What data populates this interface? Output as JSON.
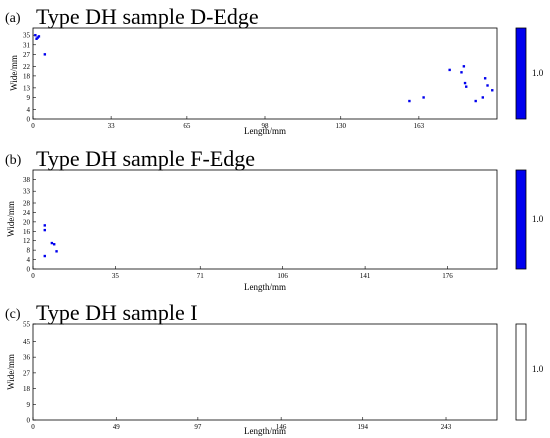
{
  "chart_data": [
    {
      "type": "scatter",
      "panel_label": "(a)",
      "title": "Type DH sample D-Edge",
      "xlabel": "Length/mm",
      "ylabel": "Wide/mm",
      "xticks": [
        0,
        33,
        65,
        98,
        130,
        163
      ],
      "yticks": [
        0,
        4,
        9,
        13,
        18,
        22,
        27,
        31,
        35
      ],
      "xlim": [
        0,
        196
      ],
      "ylim": [
        0,
        38
      ],
      "colorbar": {
        "label": "1.0",
        "color": "#0000ee"
      },
      "point_color": "#0000ee",
      "points": [
        {
          "x": 1,
          "y": 35
        },
        {
          "x": 1.5,
          "y": 33.5
        },
        {
          "x": 2,
          "y": 34
        },
        {
          "x": 2.5,
          "y": 34.5
        },
        {
          "x": 5,
          "y": 27
        },
        {
          "x": 159,
          "y": 7.5
        },
        {
          "x": 165,
          "y": 9
        },
        {
          "x": 176,
          "y": 20.5
        },
        {
          "x": 181,
          "y": 19.5
        },
        {
          "x": 182,
          "y": 22
        },
        {
          "x": 182.5,
          "y": 15
        },
        {
          "x": 183,
          "y": 13.5
        },
        {
          "x": 187,
          "y": 7.5
        },
        {
          "x": 190,
          "y": 9
        },
        {
          "x": 191,
          "y": 17
        },
        {
          "x": 192,
          "y": 14
        },
        {
          "x": 194,
          "y": 12
        }
      ]
    },
    {
      "type": "scatter",
      "panel_label": "(b)",
      "title": "Type DH sample F-Edge",
      "xlabel": "Length/mm",
      "ylabel": "Wide/mm",
      "xticks": [
        0,
        35,
        71,
        106,
        141,
        176
      ],
      "yticks": [
        0,
        4,
        8,
        12,
        16,
        20,
        24,
        28,
        33,
        38
      ],
      "xlim": [
        0,
        197
      ],
      "ylim": [
        0,
        42
      ],
      "colorbar": {
        "label": "1.0",
        "color": "#0000ee"
      },
      "point_color": "#0000ee",
      "points": [
        {
          "x": 5,
          "y": 18.5
        },
        {
          "x": 5,
          "y": 16.5
        },
        {
          "x": 5,
          "y": 5.5
        },
        {
          "x": 8,
          "y": 11
        },
        {
          "x": 9,
          "y": 10.5
        },
        {
          "x": 10,
          "y": 7.5
        }
      ]
    },
    {
      "type": "scatter",
      "panel_label": "(c)",
      "title": "Type DH sample I",
      "xlabel": "Length/mm",
      "ylabel": "Wide/mm",
      "xticks": [
        0,
        49,
        97,
        146,
        194,
        243
      ],
      "yticks": [
        0,
        9,
        18,
        27,
        36,
        45,
        55
      ],
      "xlim": [
        0,
        273
      ],
      "ylim": [
        0,
        55
      ],
      "colorbar": {
        "label": "1.0",
        "color": "#ffffff"
      },
      "point_color": "#0000ee",
      "points": []
    }
  ]
}
